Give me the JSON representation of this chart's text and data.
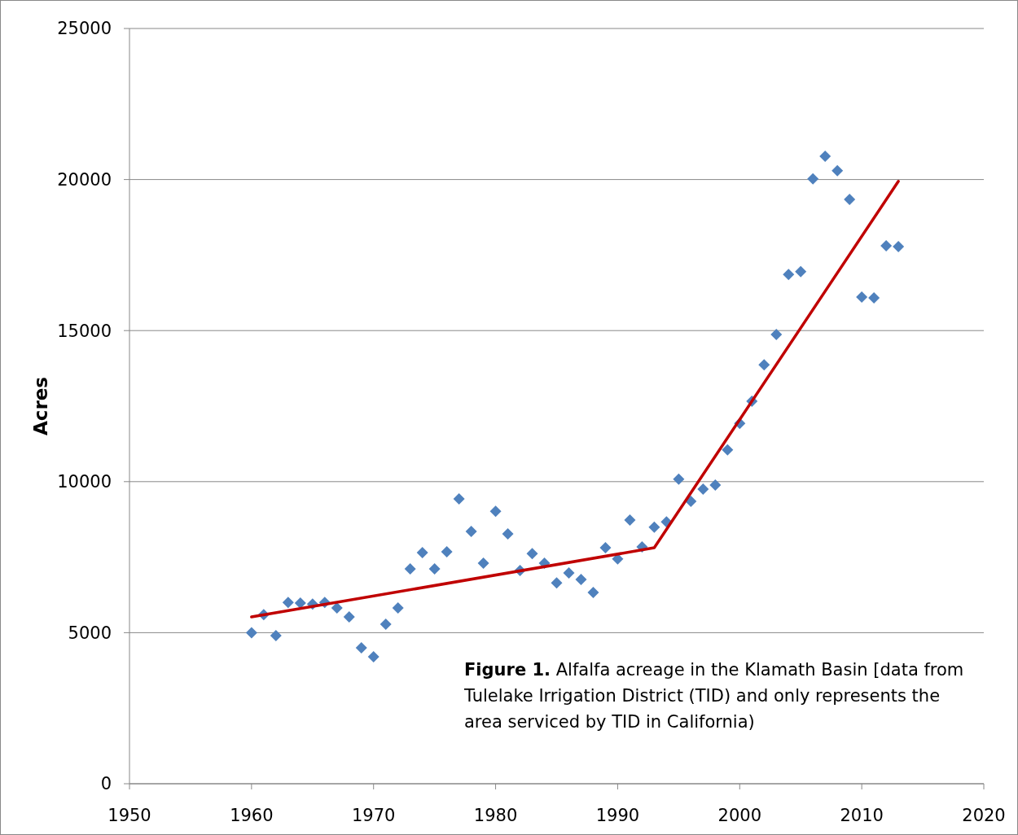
{
  "chart_data": {
    "type": "scatter",
    "ylabel": "Acres",
    "xlim": [
      1950,
      2020
    ],
    "xticks": [
      1950,
      1960,
      1970,
      1980,
      1990,
      2000,
      2010,
      2020
    ],
    "ylim": [
      0,
      25000
    ],
    "yticks": [
      0,
      5000,
      10000,
      15000,
      20000,
      25000
    ],
    "grid": "y",
    "series": [
      {
        "type": "scatter",
        "color": "#4f81bd",
        "marker": "diamond",
        "x": [
          1960,
          1961,
          1962,
          1963,
          1964,
          1965,
          1966,
          1967,
          1968,
          1969,
          1970,
          1971,
          1972,
          1973,
          1974,
          1975,
          1976,
          1977,
          1978,
          1979,
          1980,
          1981,
          1982,
          1983,
          1984,
          1985,
          1986,
          1987,
          1988,
          1989,
          1990,
          1991,
          1992,
          1993,
          1994,
          1995,
          1996,
          1997,
          1998,
          1999,
          2000,
          2001,
          2002,
          2003,
          2004,
          2005,
          2006,
          2007,
          2008,
          2009,
          2010,
          2011,
          2012,
          2013
        ],
        "values": [
          5000,
          5600,
          4900,
          6000,
          5980,
          5950,
          6000,
          5820,
          5520,
          4500,
          4200,
          5280,
          5820,
          7110,
          7650,
          7110,
          7680,
          9430,
          8350,
          7300,
          9020,
          8270,
          7060,
          7620,
          7300,
          6650,
          6980,
          6760,
          6330,
          7810,
          7440,
          8730,
          7840,
          8490,
          8670,
          10080,
          9350,
          9750,
          9890,
          11050,
          11930,
          12660,
          13870,
          14870,
          16860,
          16950,
          20020,
          20770,
          20290,
          19340,
          16110,
          16080,
          17810,
          17780
        ]
      },
      {
        "type": "line",
        "color": "#c00000",
        "marker": "none",
        "line_style": "solid",
        "x": [
          1960,
          1993,
          2013
        ],
        "values": [
          5520,
          7810,
          19940
        ]
      }
    ],
    "annotations": [
      {
        "text": "Figure 1. Alfalfa acreage in the Klamath Basin [data from Tulelake Irrigation District (TID) and only represents the area serviced by TID in California)"
      }
    ]
  }
}
